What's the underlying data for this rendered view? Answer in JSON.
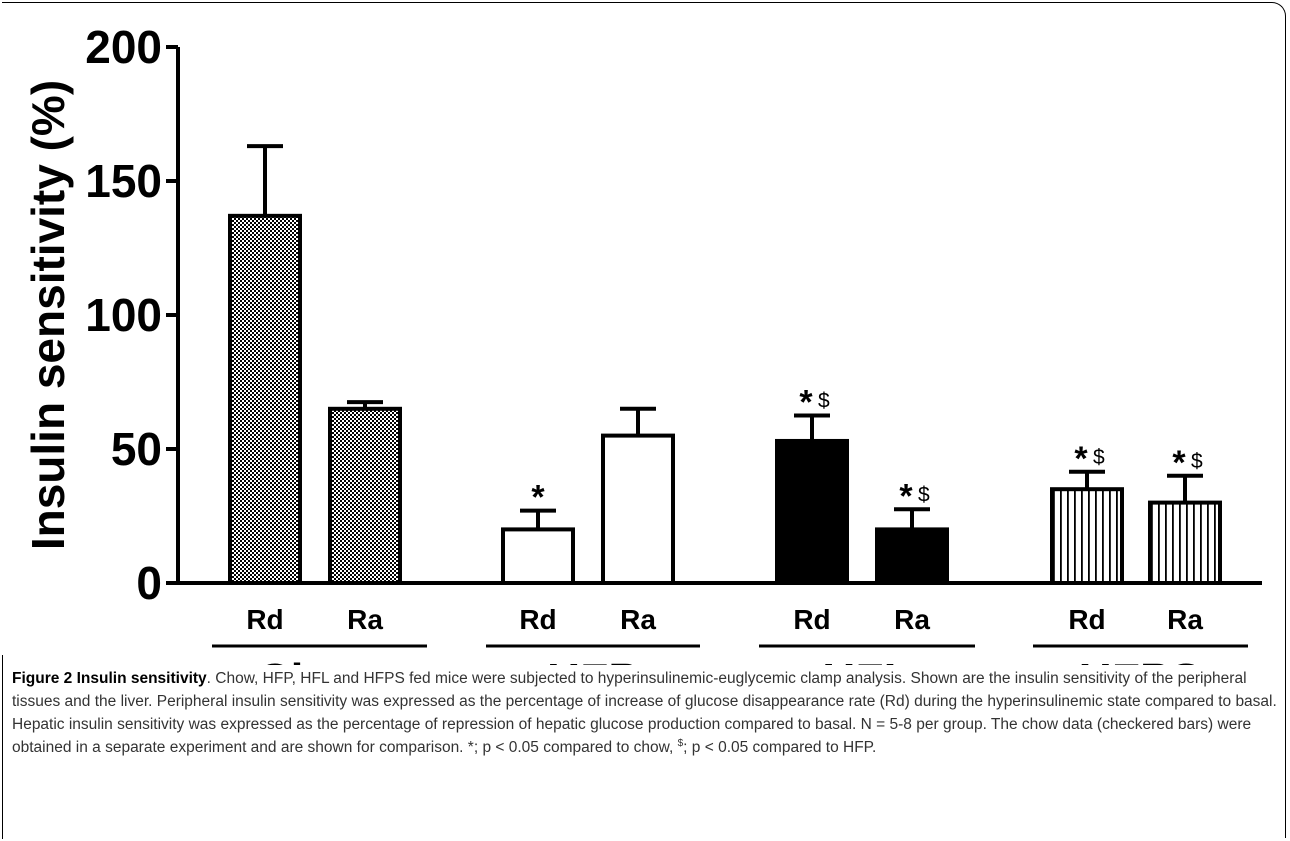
{
  "chart_data": {
    "type": "bar",
    "ylabel": "Insulin sensitivity (%)",
    "ylim": [
      0,
      200
    ],
    "yticks": [
      0,
      50,
      100,
      150,
      200
    ],
    "group_labels": [
      "Chow",
      "HFP",
      "HFL",
      "HFPS"
    ],
    "bar_labels": [
      "Rd",
      "Ra"
    ],
    "bars": [
      {
        "group": "Chow",
        "label": "Rd",
        "value": 137,
        "error": 26,
        "fill": "checkered",
        "annotation": ""
      },
      {
        "group": "Chow",
        "label": "Ra",
        "value": 65,
        "error": 2.5,
        "fill": "checkered",
        "annotation": ""
      },
      {
        "group": "HFP",
        "label": "Rd",
        "value": 20,
        "error": 7,
        "fill": "white",
        "annotation": "*"
      },
      {
        "group": "HFP",
        "label": "Ra",
        "value": 55,
        "error": 10,
        "fill": "white",
        "annotation": ""
      },
      {
        "group": "HFL",
        "label": "Rd",
        "value": 53,
        "error": 9.5,
        "fill": "black",
        "annotation": "*$"
      },
      {
        "group": "HFL",
        "label": "Ra",
        "value": 20,
        "error": 7.5,
        "fill": "black",
        "annotation": "*$"
      },
      {
        "group": "HFPS",
        "label": "Rd",
        "value": 35,
        "error": 6.5,
        "fill": "vertical-stripes",
        "annotation": "*$"
      },
      {
        "group": "HFPS",
        "label": "Ra",
        "value": 30,
        "error": 10,
        "fill": "vertical-stripes",
        "annotation": "*$"
      }
    ]
  },
  "caption": {
    "title": "Figure 2 Insulin sensitivity",
    "text_before_sup": ". Chow, HFP, HFL and HFPS fed mice were subjected to hyperinsulinemic-euglycemic clamp analysis. Shown are the insulin sensitivity of the peripheral tissues and the liver. Peripheral insulin sensitivity was expressed as the percentage of increase of glucose disappearance rate (Rd) during the hyperinsulinemic state compared to basal. Hepatic insulin sensitivity was expressed as the percentage of repression of hepatic glucose production compared to basal. N = 5-8 per group. The chow data (checkered bars) were obtained in a separate experiment and are shown for comparison. *; p < 0.05 compared to chow, ",
    "sup": "$",
    "text_after_sup": "; p < 0.05 compared to HFP."
  }
}
